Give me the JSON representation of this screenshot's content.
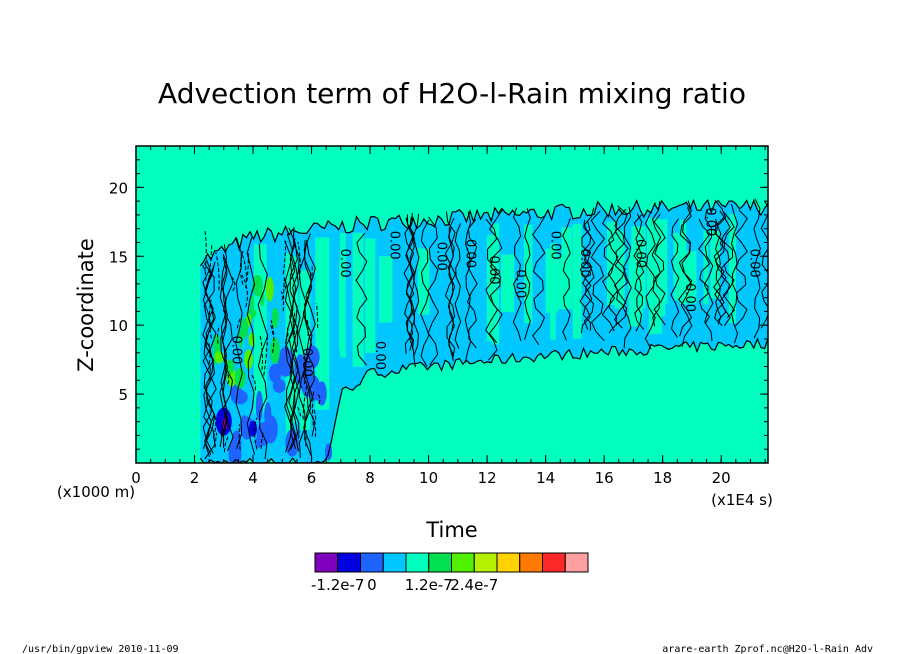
{
  "chart_data": {
    "type": "heatmap",
    "subtype": "filled-contour",
    "title": "Advection term of H2O-l-Rain mixing ratio",
    "xlabel": "Time",
    "ylabel": "Z-coordinate",
    "x_unit_label": "(x1E4 s)",
    "y_unit_label": "(x1000 m)",
    "xlim": [
      0,
      21.6
    ],
    "ylim": [
      0,
      23
    ],
    "xticks": [
      "0",
      "2",
      "4",
      "6",
      "8",
      "10",
      "12",
      "14",
      "16",
      "18",
      "20"
    ],
    "yticks": [
      "5",
      "10",
      "15",
      "20"
    ],
    "contour_label": "0.00",
    "background_level_color": "#00ffbe",
    "colorbar": {
      "colors": [
        "#8000c0",
        "#0000e0",
        "#1e64ff",
        "#00c8ff",
        "#00ffbe",
        "#00e050",
        "#50f000",
        "#b4f000",
        "#ffd200",
        "#ff7800",
        "#ff2828",
        "#ffa0a0"
      ],
      "labels": [
        "-1.2e-7",
        "0",
        "1.2e-7",
        "2.4e-7"
      ],
      "label_values": [
        -1.2e-07,
        0,
        1.2e-07,
        2.4e-07
      ],
      "level_step": 6e-08
    },
    "regions": {
      "rain_top_km": [
        [
          2.5,
          15.5
        ],
        [
          4,
          17
        ],
        [
          6,
          17.5
        ],
        [
          8,
          18
        ],
        [
          12,
          18.5
        ],
        [
          16,
          19
        ],
        [
          21.6,
          19.2
        ]
      ],
      "rain_bottom_km": [
        [
          6.5,
          0
        ],
        [
          7,
          5
        ],
        [
          8,
          6.5
        ],
        [
          10,
          7
        ],
        [
          14,
          7.8
        ],
        [
          18,
          8.3
        ],
        [
          21.6,
          8.7
        ]
      ],
      "rain_start_x": 2.2,
      "strong_negative_center": [
        3,
        3
      ]
    }
  },
  "footer": {
    "left": "/usr/bin/gpview  2010-11-09",
    "right": "arare-earth_Zprof.nc@H2O-l-Rain_Adv"
  }
}
